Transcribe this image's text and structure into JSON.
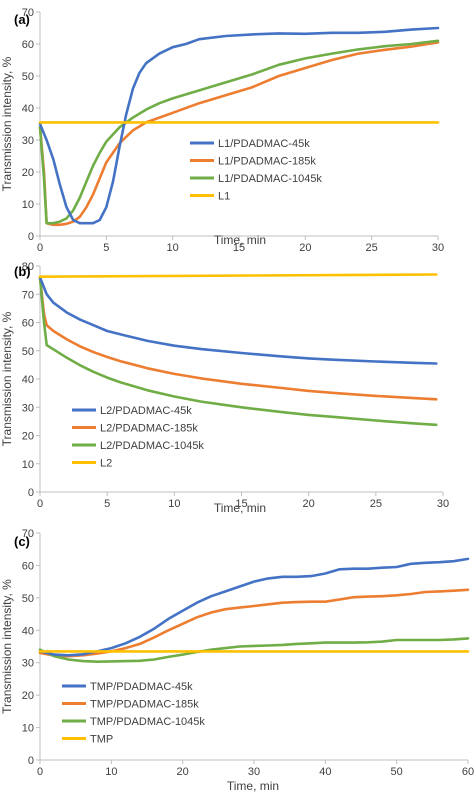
{
  "chart_data": [
    {
      "type": "line",
      "panel_label": "(a)",
      "xlabel": "Time, min",
      "ylabel": "Transmission intensity, %",
      "xlim": [
        0,
        30
      ],
      "ylim": [
        0,
        70
      ],
      "xticks": [
        0,
        5,
        10,
        15,
        20,
        25,
        30
      ],
      "yticks": [
        0,
        10,
        20,
        30,
        40,
        50,
        60,
        70
      ],
      "grid": false,
      "legend_position": "right",
      "series": [
        {
          "name": "L1/PDADMAC-45k",
          "color": "#4472C4",
          "x": [
            0,
            0.5,
            1,
            1.5,
            2,
            2.5,
            3,
            3.5,
            4,
            4.5,
            5,
            5.5,
            6,
            6.5,
            7,
            7.5,
            8,
            9,
            10,
            11,
            12,
            14,
            16,
            18,
            20,
            22,
            24,
            26,
            28,
            30
          ],
          "y": [
            35,
            30,
            24,
            16,
            9,
            5,
            4,
            4,
            4,
            5,
            9,
            17,
            28,
            38,
            46,
            51,
            54,
            57,
            59,
            60,
            61.5,
            62.5,
            63,
            63.3,
            63.2,
            63.5,
            63.5,
            63.8,
            64.5,
            65
          ]
        },
        {
          "name": "L1/PDADMAC-185k",
          "color": "#ED7D31",
          "x": [
            0,
            0.3,
            0.5,
            1,
            1.5,
            2,
            2.5,
            3,
            3.5,
            4,
            4.5,
            5,
            6,
            7,
            8,
            9,
            10,
            12,
            14,
            16,
            18,
            20,
            22,
            24,
            26,
            28,
            30
          ],
          "y": [
            34,
            20,
            4,
            3.5,
            3.5,
            3.8,
            4.5,
            6,
            9,
            13,
            18,
            23,
            29,
            33,
            35.5,
            37,
            38.5,
            41.5,
            44,
            46.5,
            50,
            52.5,
            55,
            57,
            58.2,
            59.2,
            60.5
          ]
        },
        {
          "name": "L1/PDADMAC-1045k",
          "color": "#70AD47",
          "x": [
            0,
            0.3,
            0.5,
            1,
            1.5,
            2,
            2.5,
            3,
            3.5,
            4,
            4.5,
            5,
            6,
            7,
            8,
            9,
            10,
            12,
            14,
            16,
            18,
            20,
            22,
            24,
            26,
            28,
            30
          ],
          "y": [
            34,
            18,
            4,
            4,
            4.5,
            5.5,
            8,
            12,
            17,
            22,
            26,
            29.5,
            34,
            37,
            39.5,
            41.5,
            43,
            45.5,
            48,
            50.5,
            53.5,
            55.5,
            57,
            58.3,
            59.3,
            60,
            61
          ]
        },
        {
          "name": "L1",
          "color": "#FFC000",
          "x": [
            0,
            30
          ],
          "y": [
            35.5,
            35.5
          ]
        }
      ]
    },
    {
      "type": "line",
      "panel_label": "(b)",
      "xlabel": "Time, min",
      "ylabel": "Transmission intensity, %",
      "xlim": [
        0,
        30
      ],
      "ylim": [
        0,
        80
      ],
      "xticks": [
        0,
        5,
        10,
        15,
        20,
        25,
        30
      ],
      "yticks": [
        0,
        10,
        20,
        30,
        40,
        50,
        60,
        70,
        80
      ],
      "grid": false,
      "legend_position": "bottom-left",
      "series": [
        {
          "name": "L2/PDADMAC-45k",
          "color": "#4472C4",
          "x": [
            0,
            0.5,
            1,
            2,
            3,
            4,
            5,
            6,
            8,
            10,
            12,
            15,
            18,
            20,
            22,
            25,
            28,
            29.5
          ],
          "y": [
            76,
            70,
            67,
            63.5,
            61,
            59,
            57,
            55.8,
            53.5,
            51.8,
            50.6,
            49.2,
            48,
            47.3,
            46.8,
            46.2,
            45.7,
            45.5
          ]
        },
        {
          "name": "L2/PDADMAC-185k",
          "color": "#ED7D31",
          "x": [
            0,
            0.3,
            0.5,
            1,
            2,
            3,
            4,
            5,
            6,
            8,
            10,
            12,
            15,
            18,
            20,
            22,
            25,
            28,
            29.5
          ],
          "y": [
            76,
            63,
            59,
            57,
            54,
            51.5,
            49.5,
            47.8,
            46.3,
            43.8,
            41.8,
            40.2,
            38.3,
            36.8,
            35.8,
            35,
            34,
            33.2,
            32.8
          ]
        },
        {
          "name": "L2/PDADMAC-1045k",
          "color": "#70AD47",
          "x": [
            0,
            0.3,
            0.5,
            1,
            2,
            3,
            4,
            5,
            6,
            8,
            10,
            12,
            15,
            18,
            20,
            22,
            25,
            28,
            29.5
          ],
          "y": [
            76,
            60,
            52,
            50.5,
            47.5,
            44.8,
            42.5,
            40.5,
            38.8,
            36,
            33.8,
            32,
            30,
            28.3,
            27.3,
            26.5,
            25.3,
            24.2,
            23.8
          ]
        },
        {
          "name": "L2",
          "color": "#FFC000",
          "x": [
            0,
            29.5
          ],
          "y": [
            76.2,
            77
          ]
        }
      ]
    },
    {
      "type": "line",
      "panel_label": "(c)",
      "xlabel": "Time, min",
      "ylabel": "Transmission intensity, %",
      "xlim": [
        0,
        60
      ],
      "ylim": [
        0,
        70
      ],
      "xticks": [
        0,
        10,
        20,
        30,
        40,
        50,
        60
      ],
      "yticks": [
        0,
        10,
        20,
        30,
        40,
        50,
        60,
        70
      ],
      "grid": false,
      "legend_position": "bottom-left",
      "series": [
        {
          "name": "TMP/PDADMAC-45k",
          "color": "#4472C4",
          "x": [
            0,
            2,
            4,
            6,
            8,
            10,
            12,
            14,
            16,
            18,
            20,
            22,
            24,
            26,
            28,
            30,
            32,
            34,
            36,
            38,
            40,
            42,
            44,
            46,
            48,
            50,
            52,
            54,
            56,
            58,
            60
          ],
          "y": [
            33.5,
            32.5,
            32.3,
            32.6,
            33.5,
            34.5,
            36,
            38,
            40.5,
            43.5,
            46,
            48.5,
            50.5,
            52,
            53.5,
            55,
            56,
            56.5,
            56.5,
            56.7,
            57.5,
            58.8,
            59,
            59,
            59.3,
            59.5,
            60.5,
            60.8,
            61,
            61.3,
            62
          ]
        },
        {
          "name": "TMP/PDADMAC-185k",
          "color": "#ED7D31",
          "x": [
            0,
            2,
            4,
            6,
            8,
            10,
            12,
            14,
            16,
            18,
            20,
            22,
            24,
            26,
            28,
            30,
            32,
            34,
            36,
            38,
            40,
            42,
            44,
            46,
            48,
            50,
            52,
            54,
            56,
            58,
            60
          ],
          "y": [
            33,
            32.2,
            32,
            32.3,
            32.8,
            33.5,
            34.5,
            35.8,
            37.8,
            40,
            42,
            44,
            45.5,
            46.5,
            47,
            47.5,
            48,
            48.5,
            48.7,
            48.8,
            48.8,
            49.5,
            50.2,
            50.4,
            50.5,
            50.8,
            51.2,
            51.8,
            52,
            52.2,
            52.5
          ]
        },
        {
          "name": "TMP/PDADMAC-1045k",
          "color": "#70AD47",
          "x": [
            0,
            2,
            4,
            6,
            8,
            10,
            12,
            14,
            16,
            18,
            20,
            22,
            24,
            26,
            28,
            30,
            32,
            34,
            36,
            38,
            40,
            42,
            44,
            46,
            48,
            50,
            52,
            54,
            56,
            58,
            60
          ],
          "y": [
            34,
            32,
            31,
            30.5,
            30.3,
            30.4,
            30.5,
            30.6,
            31,
            31.8,
            32.5,
            33.3,
            34,
            34.5,
            35,
            35.2,
            35.3,
            35.5,
            35.8,
            36,
            36.2,
            36.2,
            36.2,
            36.3,
            36.5,
            37,
            37,
            37,
            37,
            37.2,
            37.5
          ]
        },
        {
          "name": "TMP",
          "color": "#FFC000",
          "x": [
            0,
            60
          ],
          "y": [
            33.5,
            33.5
          ]
        }
      ]
    }
  ]
}
